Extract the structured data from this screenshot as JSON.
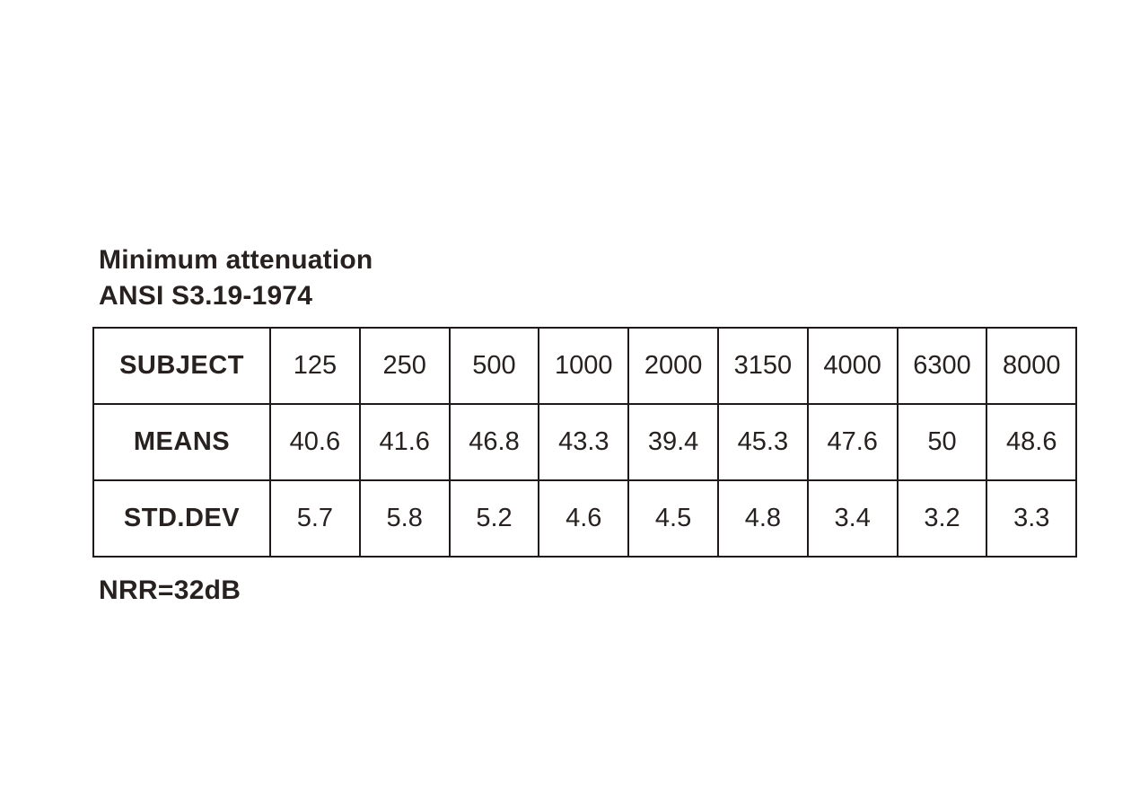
{
  "title": {
    "line1": "Minimum attenuation",
    "line2": "ANSI S3.19-1974"
  },
  "table": {
    "header": [
      "SUBJECT",
      "125",
      "250",
      "500",
      "1000",
      "2000",
      "3150",
      "4000",
      "6300",
      "8000"
    ],
    "rows": [
      {
        "label": "MEANS",
        "values": [
          "40.6",
          "41.6",
          "46.8",
          "43.3",
          "39.4",
          "45.3",
          "47.6",
          "50",
          "48.6"
        ]
      },
      {
        "label": "STD.DEV",
        "values": [
          "5.7",
          "5.8",
          "5.2",
          "4.6",
          "4.5",
          "4.8",
          "3.4",
          "3.2",
          "3.3"
        ]
      }
    ]
  },
  "footer": {
    "nrr_label": "NRR=32dB"
  },
  "colors": {
    "text": "#272120",
    "border": "#1f1a19",
    "background": "#ffffff"
  }
}
